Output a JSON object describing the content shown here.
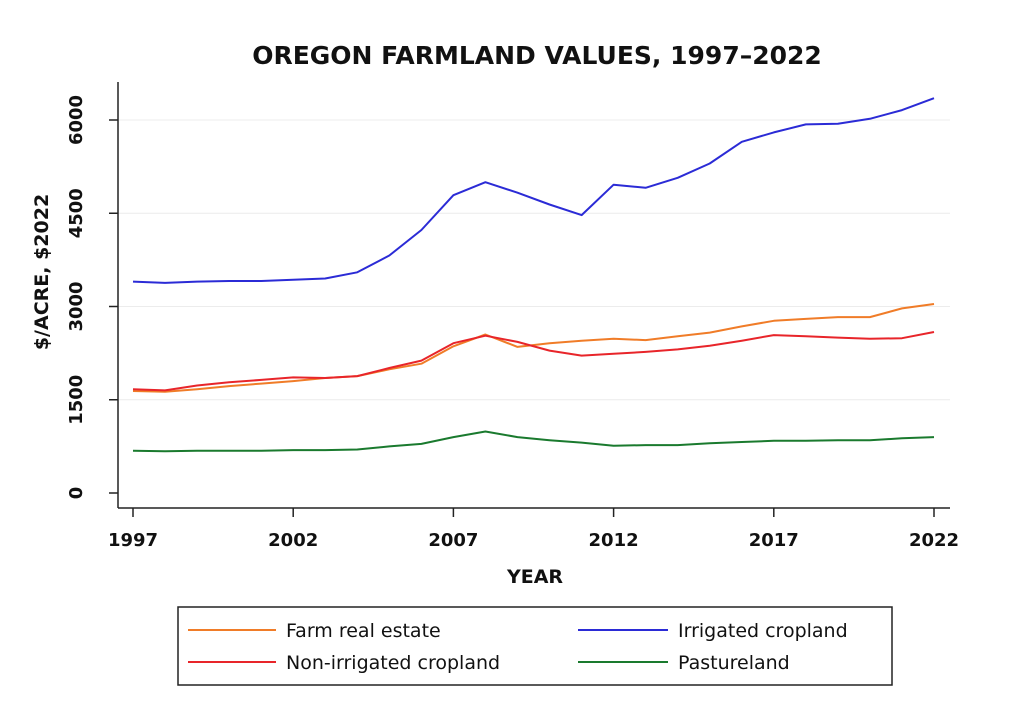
{
  "chart_data": {
    "type": "line",
    "title": "OREGON FARMLAND VALUES, 1997–2022",
    "xlabel": "YEAR",
    "ylabel": "$/ACRE, $2022",
    "xlim": [
      1997,
      2022
    ],
    "ylim": [
      0,
      6500
    ],
    "x_ticks": [
      1997,
      2002,
      2007,
      2012,
      2017,
      2022
    ],
    "y_ticks": [
      0,
      1500,
      3000,
      4500,
      6000
    ],
    "grid": true,
    "legend_position": "bottom",
    "x": [
      1997,
      1998,
      1999,
      2000,
      2001,
      2002,
      2003,
      2004,
      2005,
      2006,
      2007,
      2008,
      2009,
      2010,
      2011,
      2012,
      2013,
      2014,
      2015,
      2016,
      2017,
      2018,
      2019,
      2020,
      2021,
      2022
    ],
    "series": [
      {
        "name": "Farm real estate",
        "color": "#f07c28",
        "values": [
          1640,
          1630,
          1670,
          1720,
          1760,
          1800,
          1850,
          1880,
          1990,
          2080,
          2360,
          2550,
          2350,
          2410,
          2450,
          2480,
          2460,
          2520,
          2580,
          2680,
          2770,
          2800,
          2830,
          2830,
          2970,
          3040
        ]
      },
      {
        "name": "Irrigated cropland",
        "color": "#2b2bd6",
        "values": [
          3400,
          3380,
          3400,
          3410,
          3410,
          3430,
          3450,
          3550,
          3820,
          4230,
          4790,
          5000,
          4830,
          4640,
          4470,
          4960,
          4910,
          5070,
          5300,
          5650,
          5800,
          5930,
          5940,
          6020,
          6160,
          6350
        ]
      },
      {
        "name": "Non-irrigated cropland",
        "color": "#e8252a",
        "values": [
          1670,
          1650,
          1730,
          1780,
          1820,
          1860,
          1850,
          1880,
          2010,
          2130,
          2410,
          2530,
          2430,
          2290,
          2210,
          2240,
          2270,
          2310,
          2370,
          2450,
          2540,
          2520,
          2500,
          2480,
          2490,
          2590
        ]
      },
      {
        "name": "Pastureland",
        "color": "#1a7a2e",
        "values": [
          680,
          670,
          680,
          680,
          680,
          690,
          690,
          700,
          750,
          790,
          900,
          990,
          900,
          850,
          810,
          760,
          770,
          770,
          800,
          820,
          840,
          840,
          850,
          850,
          880,
          900
        ]
      }
    ]
  }
}
